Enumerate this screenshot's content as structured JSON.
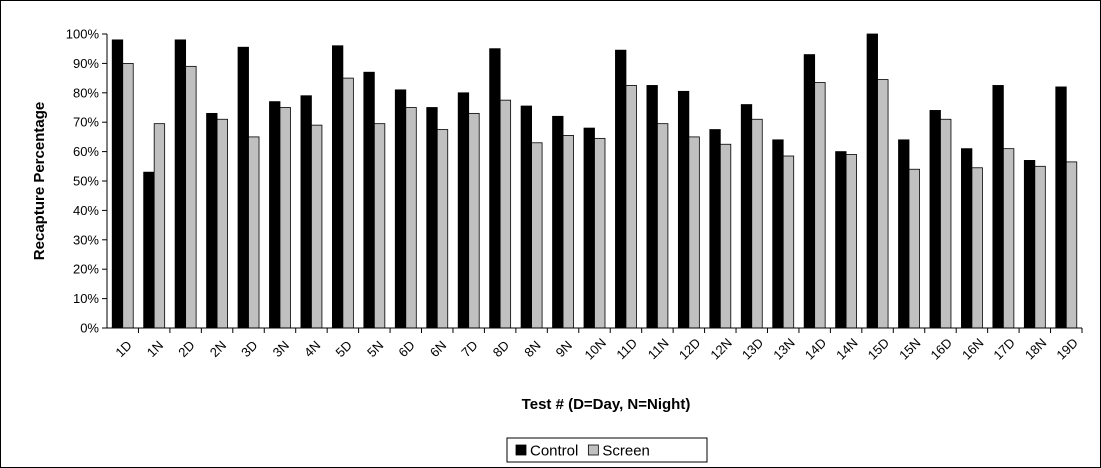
{
  "chart_data": {
    "type": "bar",
    "title": "",
    "xlabel": "Test # (D=Day, N=Night)",
    "ylabel": "Recapture Percentage",
    "ylim": [
      0,
      100
    ],
    "y_ticks": [
      "0%",
      "10%",
      "20%",
      "30%",
      "40%",
      "50%",
      "60%",
      "70%",
      "80%",
      "90%",
      "100%"
    ],
    "grid": false,
    "legend_position": "bottom",
    "categories": [
      "1D",
      "1N",
      "2D",
      "2N",
      "3D",
      "3N",
      "4N",
      "5D",
      "5N",
      "6D",
      "6N",
      "7D",
      "8D",
      "8N",
      "9N",
      "10N",
      "11D",
      "11N",
      "12D",
      "12N",
      "13D",
      "13N",
      "14D",
      "14N",
      "15D",
      "15N",
      "16D",
      "16N",
      "17D",
      "18N",
      "19D"
    ],
    "series": [
      {
        "name": "Control",
        "color": "#000000",
        "values": [
          98,
          53,
          98,
          73,
          95.5,
          77,
          79,
          96,
          87,
          81,
          75,
          80,
          95,
          75.5,
          72,
          68,
          94.5,
          82.5,
          80.5,
          67.5,
          76,
          64,
          93,
          60,
          100,
          64,
          74,
          61,
          82.5,
          57,
          82
        ]
      },
      {
        "name": "Screen",
        "color": "#c0c0c0",
        "values": [
          90,
          69.5,
          89,
          71,
          65,
          75,
          69,
          85,
          69.5,
          75,
          67.5,
          73,
          77.5,
          63,
          65.5,
          64.5,
          82.5,
          69.5,
          65,
          62.5,
          71,
          58.5,
          83.5,
          59,
          84.5,
          54,
          71,
          54.5,
          61,
          55,
          56.5
        ]
      }
    ]
  }
}
